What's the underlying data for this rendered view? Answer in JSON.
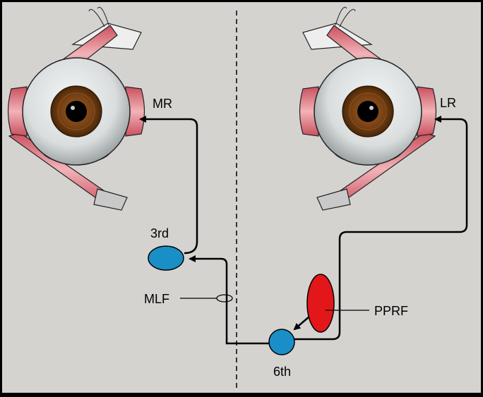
{
  "labels": {
    "mr": "MR",
    "lr": "LR",
    "third_nucleus": "3rd",
    "mlf": "MLF",
    "sixth_nucleus": "6th",
    "pprf": "PPRF"
  },
  "colors": {
    "background": "#d4d3d0",
    "nucleus": "#1a8fc7",
    "pprf": "#e3161a",
    "muscle": "#d9747f",
    "iris": "#6b3a12",
    "tendon": "#c9c9c9"
  }
}
